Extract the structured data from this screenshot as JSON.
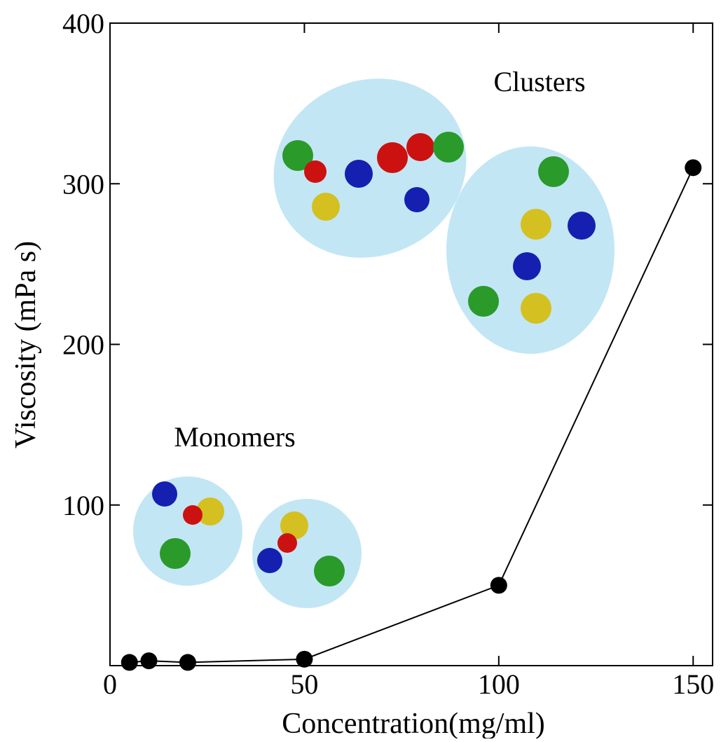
{
  "chart_data": {
    "type": "line",
    "x_label": "Concentration(mg/ml)",
    "y_label": "Viscosity (mPa s)",
    "annotations": [
      "Clusters",
      "Monomers"
    ],
    "x": [
      5,
      10,
      20,
      50,
      100,
      150
    ],
    "series": [
      {
        "color": "#000000",
        "values": [
          2,
          3,
          2,
          4,
          50,
          310
        ]
      }
    ],
    "xlim": [
      0,
      155
    ],
    "xticks": [
      0,
      50,
      100,
      150
    ],
    "ylim": [
      0,
      400
    ],
    "yticks": [
      100,
      200,
      300,
      400
    ]
  }
}
